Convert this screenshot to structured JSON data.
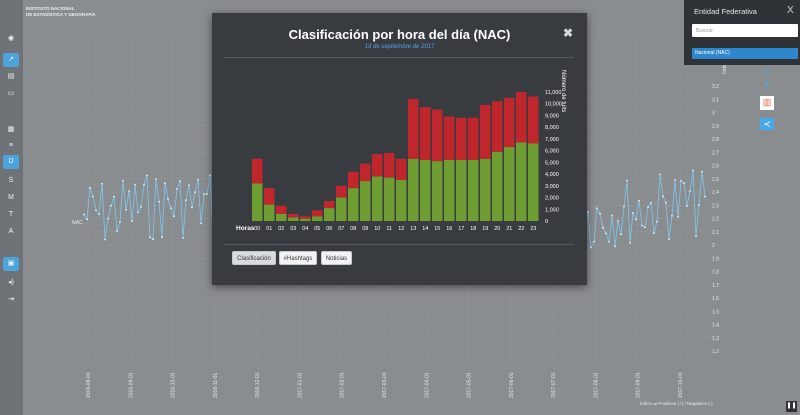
{
  "app": {
    "logo_lines": [
      "INSTITUTO NACIONAL",
      "DE ESTADÍSTICA Y GEOGRAFÍA"
    ]
  },
  "sidebar": {
    "letters": [
      "D",
      "S",
      "M",
      "T",
      "A"
    ]
  },
  "background_chart": {
    "y_axis_title": "Índice",
    "series_label": "NAC",
    "y_ticks": [
      "3.2",
      "3.1",
      "3",
      "2.9",
      "2.8",
      "2.7",
      "2.6",
      "2.5",
      "2.4",
      "2.3",
      "2.2",
      "2.1",
      "2",
      "1.9",
      "1.8",
      "1.7",
      "1.6",
      "1.5",
      "1.4",
      "1.3",
      "1.2"
    ],
    "x_ticks": [
      "2016-08-01",
      "2016-09-01",
      "2016-10-01",
      "2016-11-01",
      "2016-12-01",
      "2017-01-01",
      "2017-02-01",
      "2017-03-01",
      "2017-04-01",
      "2017-05-01",
      "2017-06-01",
      "2017-07-01",
      "2017-08-01",
      "2017-09-01",
      "2017-10-01"
    ],
    "line_color": "#7fc6ee"
  },
  "modal": {
    "title": "Clasificación por hora del día (NAC)",
    "subtitle": "19 de septiembre de 2017",
    "close_symbol": "✖",
    "buttons": {
      "clasificacion": "Clasificación",
      "hashtags": "#Hashtags",
      "noticias": "Noticias"
    }
  },
  "chart_data": {
    "type": "bar",
    "stacked": true,
    "xlabel": "Horas",
    "ylabel": "Número de tuits",
    "categories": [
      "00",
      "01",
      "02",
      "03",
      "04",
      "05",
      "06",
      "07",
      "08",
      "09",
      "10",
      "11",
      "12",
      "13",
      "14",
      "15",
      "16",
      "17",
      "18",
      "19",
      "20",
      "21",
      "22",
      "23"
    ],
    "series": [
      {
        "name": "",
        "color": "#6e9e32",
        "values": [
          3200,
          1400,
          600,
          300,
          200,
          400,
          1100,
          2000,
          2800,
          3400,
          3800,
          3700,
          3500,
          5300,
          5200,
          5100,
          5200,
          5200,
          5200,
          5300,
          5900,
          6300,
          6700,
          6600
        ]
      },
      {
        "name": "",
        "color": "#c0272d",
        "values": [
          2100,
          1400,
          700,
          300,
          200,
          500,
          600,
          1000,
          1400,
          1500,
          1900,
          2100,
          1800,
          5100,
          4500,
          4400,
          3700,
          3600,
          3600,
          4600,
          4300,
          4200,
          4300,
          4000
        ]
      }
    ],
    "y_ticks": [
      "11,000",
      "10,000",
      "9,000",
      "8,000",
      "7,000",
      "6,000",
      "5,000",
      "4,000",
      "3,000",
      "2,000",
      "1,000",
      "0"
    ],
    "ylim": [
      0,
      11500
    ]
  },
  "entidad_panel": {
    "title": "Entidad Federativa",
    "close_symbol": "X",
    "search_placeholder": "Buscar",
    "selected_option": "Nacional (NAC)"
  },
  "footer": {
    "text": "Índice",
    "legend": "Positivos (+) / Negativos (-)"
  },
  "colors": {
    "accent": "#2e86cc",
    "positive": "#6e9e32",
    "negative": "#c0272d"
  }
}
